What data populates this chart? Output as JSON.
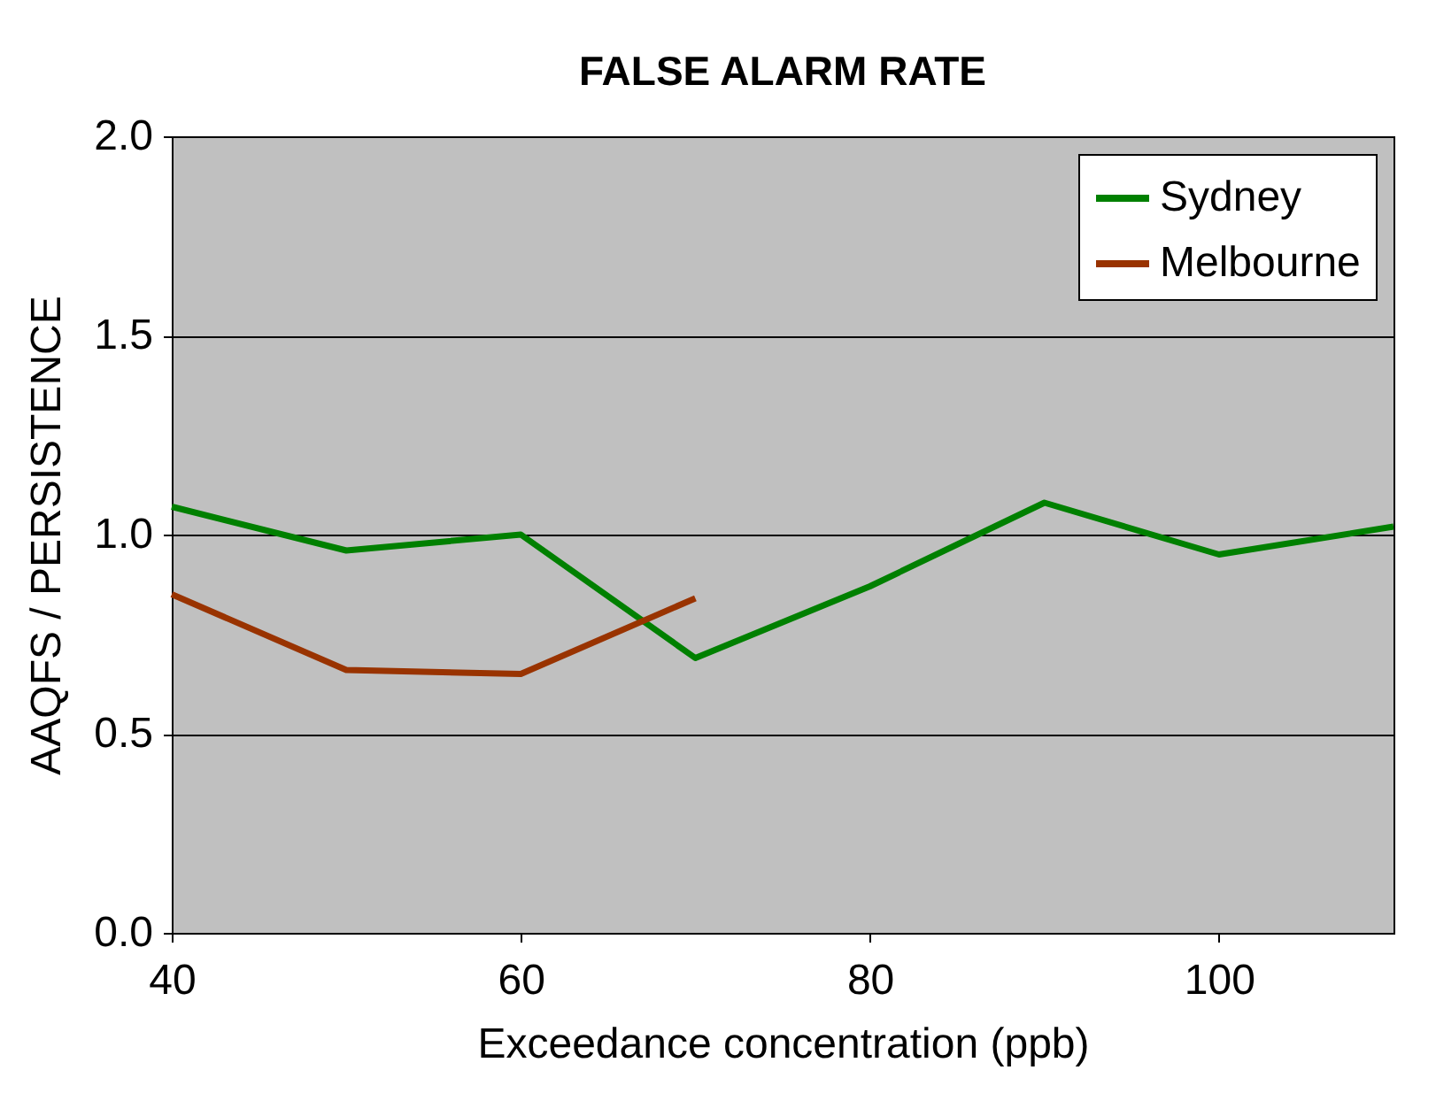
{
  "chart_data": {
    "type": "line",
    "title": "FALSE ALARM RATE",
    "xlabel": "Exceedance concentration (ppb)",
    "ylabel": "AAQFS / PERSISTENCE",
    "series": [
      {
        "name": "Sydney",
        "color": "#008000",
        "x": [
          40,
          50,
          60,
          70,
          80,
          90,
          100,
          110
        ],
        "values": [
          1.07,
          0.96,
          1.0,
          0.69,
          0.87,
          1.08,
          0.95,
          1.02
        ]
      },
      {
        "name": "Melbourne",
        "color": "#993300",
        "x": [
          40,
          50,
          60,
          70
        ],
        "values": [
          0.85,
          0.66,
          0.65,
          0.84
        ]
      }
    ],
    "xlim": [
      40,
      110
    ],
    "xticks": [
      40,
      60,
      80,
      100
    ],
    "ylim": [
      0,
      2
    ],
    "yticks": [
      {
        "value": 0,
        "label": "0.0"
      },
      {
        "value": 0.5,
        "label": "0.5"
      },
      {
        "value": 1,
        "label": "1.0"
      },
      {
        "value": 1.5,
        "label": "1.5"
      },
      {
        "value": 2,
        "label": "2.0"
      }
    ],
    "grid": "y",
    "legend": "top right",
    "marker": "none",
    "line_style": "solid"
  }
}
